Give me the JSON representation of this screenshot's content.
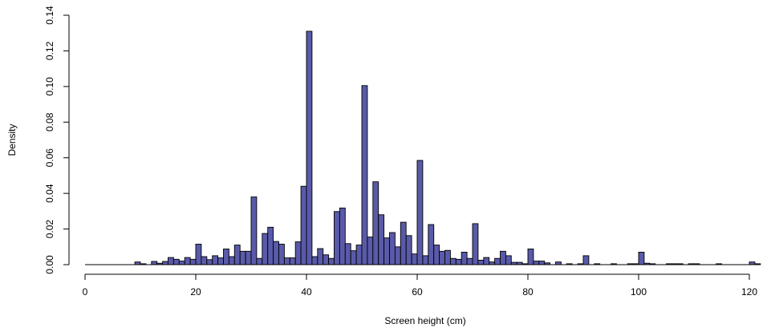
{
  "chart_data": {
    "type": "bar",
    "title": "",
    "xlabel": "Screen height (cm)",
    "ylabel": "Density",
    "xlim": [
      0,
      124
    ],
    "ylim": [
      0,
      0.14
    ],
    "xticks": [
      0,
      20,
      40,
      60,
      80,
      100,
      120
    ],
    "xtick_labels": [
      "0",
      "20",
      "40",
      "60",
      "80",
      "100",
      "120"
    ],
    "yticks": [
      0,
      0.02,
      0.04,
      0.06,
      0.08,
      0.1,
      0.12,
      0.14
    ],
    "ytick_labels": [
      "0.00",
      "0.02",
      "0.04",
      "0.06",
      "0.08",
      "0.10",
      "0.12",
      "0.14"
    ],
    "bin_width": 1,
    "bins_start": 0,
    "values": [
      0,
      0,
      0,
      0,
      0,
      0,
      0,
      0,
      0,
      0.0015,
      0.0005,
      0,
      0.0018,
      0.0008,
      0.0018,
      0.004,
      0.003,
      0.002,
      0.004,
      0.003,
      0.0115,
      0.0045,
      0.0028,
      0.005,
      0.0038,
      0.0088,
      0.0045,
      0.011,
      0.0075,
      0.0075,
      0.038,
      0.0035,
      0.0175,
      0.021,
      0.013,
      0.0115,
      0.0038,
      0.0038,
      0.0128,
      0.044,
      0.131,
      0.0045,
      0.009,
      0.0055,
      0.0035,
      0.0298,
      0.0318,
      0.0118,
      0.0078,
      0.011,
      0.1005,
      0.0155,
      0.0465,
      0.028,
      0.015,
      0.018,
      0.01,
      0.0238,
      0.0163,
      0.006,
      0.0585,
      0.005,
      0.0225,
      0.011,
      0.0075,
      0.008,
      0.0035,
      0.003,
      0.007,
      0.0035,
      0.023,
      0.0025,
      0.004,
      0.0015,
      0.0035,
      0.0075,
      0.005,
      0.0013,
      0.0013,
      0.0005,
      0.0088,
      0.002,
      0.002,
      0.001,
      0,
      0.0015,
      0,
      0.0005,
      0,
      0.0005,
      0.005,
      0,
      0.0005,
      0,
      0,
      0.0005,
      0,
      0,
      0.0005,
      0.0005,
      0.007,
      0.0008,
      0.0005,
      0,
      0,
      0.0005,
      0.0005,
      0.0005,
      0,
      0.0005,
      0.0005,
      0,
      0,
      0,
      0.0005,
      0,
      0,
      0,
      0,
      0,
      0.0015,
      0.0005
    ],
    "colors": {
      "bar_fill": "#5a5aaa",
      "bar_stroke": "#000000",
      "axis": "#000000"
    },
    "grid": false,
    "legend": "none"
  }
}
